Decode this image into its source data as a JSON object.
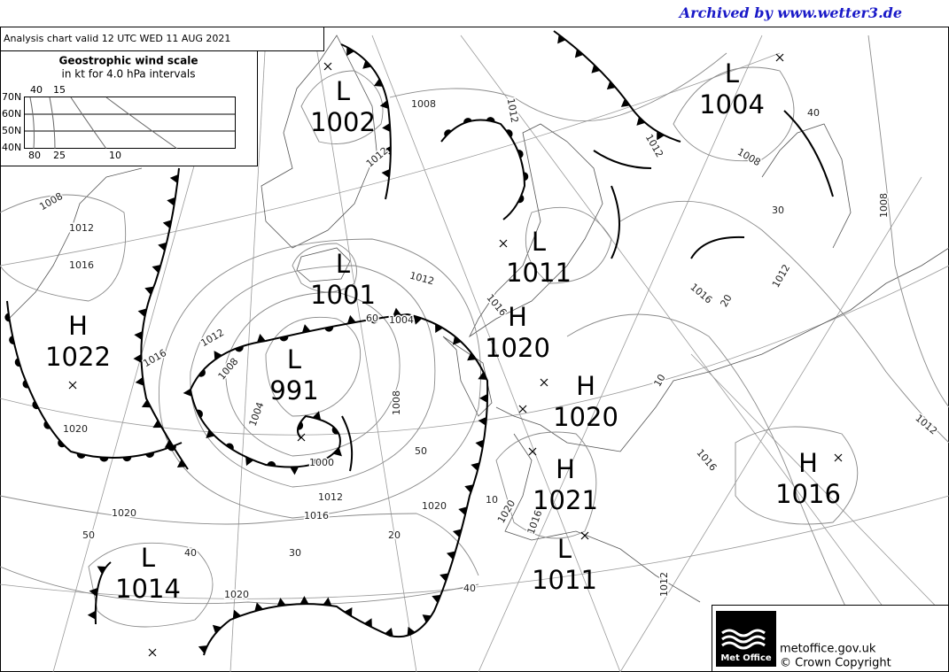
{
  "header": {
    "archive": "Archived by www.wetter3.de",
    "analysis": "Analysis chart  valid 12 UTC WED 11  AUG 2021"
  },
  "wind_scale": {
    "title": "Geostrophic wind scale",
    "subtitle": "in kt for 4.0 hPa intervals",
    "latitudes": [
      "70N",
      "60N",
      "50N",
      "40N"
    ],
    "top_speeds": [
      40,
      15
    ],
    "bottom_speeds": [
      80,
      25,
      10
    ]
  },
  "pressure_centers": [
    {
      "type": "L",
      "pressure": 1002
    },
    {
      "type": "L",
      "pressure": 1001
    },
    {
      "type": "L",
      "pressure": 991
    },
    {
      "type": "H",
      "pressure": 1022
    },
    {
      "type": "L",
      "pressure": 1011
    },
    {
      "type": "H",
      "pressure": 1020
    },
    {
      "type": "H",
      "pressure": 1020
    },
    {
      "type": "H",
      "pressure": 1021
    },
    {
      "type": "L",
      "pressure": 1011
    },
    {
      "type": "L",
      "pressure": 1014
    },
    {
      "type": "L",
      "pressure": 1004
    },
    {
      "type": "H",
      "pressure": 1016
    }
  ],
  "isobar_labels": [
    1008,
    1012,
    1012,
    1012,
    1008,
    40,
    30,
    1008,
    1008,
    1012,
    1016,
    1016,
    1012,
    1004,
    60,
    1012,
    1016,
    1008,
    1004,
    1008,
    1000,
    1020,
    50,
    1012,
    1016,
    1020,
    1020,
    10,
    1020,
    1016,
    50,
    40,
    30,
    20,
    40,
    1020,
    1012,
    1016,
    1016,
    20,
    1012,
    10,
    1012
  ],
  "footer": {
    "logo": "Met Office",
    "website": "metoffice.gov.uk",
    "copyright": "© Crown Copyright"
  }
}
